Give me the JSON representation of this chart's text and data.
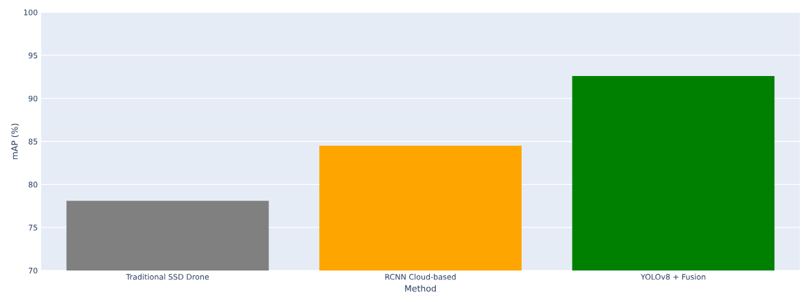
{
  "chart_data": {
    "type": "bar",
    "xlabel": "Method",
    "ylabel": "mAP (%)",
    "categories": [
      "Traditional SSD Drone",
      "RCNN Cloud-based",
      "YOLOv8 + Fusion"
    ],
    "values": [
      78.1,
      84.5,
      92.6
    ],
    "colors": [
      "#808080",
      "#ffa500",
      "#008000"
    ],
    "ylim": [
      70,
      100
    ],
    "yticks": [
      70,
      75,
      80,
      85,
      90,
      95,
      100
    ],
    "grid": "y"
  }
}
